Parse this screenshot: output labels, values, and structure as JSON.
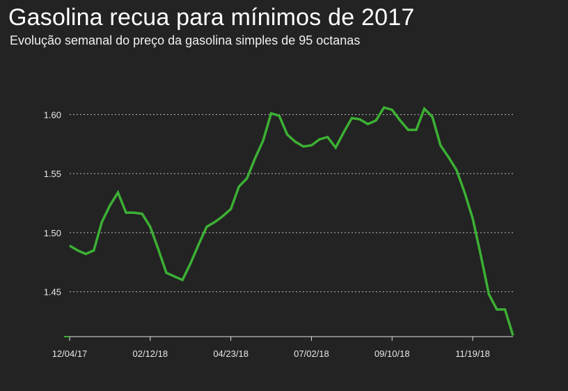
{
  "chart_data": {
    "type": "line",
    "title": "Gasolina recua para mínimos de 2017",
    "subtitle": "Evolução semanal do preço da gasolina simples de 95 octanas",
    "xlabel": "",
    "ylabel": "",
    "x_tick_labels": [
      "12/04/17",
      "02/12/18",
      "04/23/18",
      "07/02/18",
      "09/10/18",
      "11/19/18"
    ],
    "y_tick_labels": [
      "1.45",
      "1.50",
      "1.55",
      "1.60"
    ],
    "yticks": [
      1.45,
      1.5,
      1.55,
      1.6
    ],
    "ylim": [
      1.412,
      1.638
    ],
    "grid": true,
    "line_color": "#3cb034",
    "grid_color": "#bdbdbd",
    "series": [
      {
        "values": [
          1.489,
          1.485,
          1.482,
          1.485,
          1.509,
          1.523,
          1.534,
          1.517,
          1.517,
          1.516,
          1.505,
          1.486,
          1.466,
          1.463,
          1.46,
          1.474,
          1.49,
          1.505,
          1.509,
          1.514,
          1.52,
          1.539,
          1.546,
          1.563,
          1.578,
          1.601,
          1.599,
          1.583,
          1.577,
          1.573,
          1.574,
          1.579,
          1.581,
          1.572,
          1.585,
          1.597,
          1.596,
          1.592,
          1.595,
          1.606,
          1.604,
          1.595,
          1.587,
          1.587,
          1.605,
          1.598,
          1.574,
          1.564,
          1.553,
          1.534,
          1.512,
          1.481,
          1.448,
          1.435,
          1.435,
          1.413
        ]
      }
    ]
  }
}
